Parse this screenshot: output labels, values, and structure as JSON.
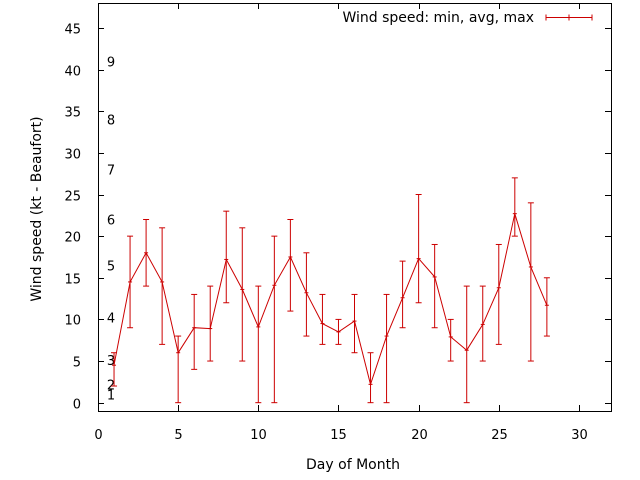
{
  "chart_data": {
    "type": "line",
    "subtype": "errorbar",
    "xlabel": "Day of Month",
    "ylabel": "Wind speed (kt - Beaufort)",
    "xlim": [
      0,
      32
    ],
    "ylim": [
      -1,
      48
    ],
    "xticks": [
      0,
      5,
      10,
      15,
      20,
      25,
      30
    ],
    "yticks": [
      0,
      5,
      10,
      15,
      20,
      25,
      30,
      35,
      40,
      45
    ],
    "beaufort_labels": [
      {
        "value": 1,
        "label": "1"
      },
      {
        "value": 2.2,
        "label": "2"
      },
      {
        "value": 5.1,
        "label": "3"
      },
      {
        "value": 10.2,
        "label": "4"
      },
      {
        "value": 16.5,
        "label": "5"
      },
      {
        "value": 22,
        "label": "6"
      },
      {
        "value": 28,
        "label": "7"
      },
      {
        "value": 34,
        "label": "8"
      },
      {
        "value": 41,
        "label": "9"
      }
    ],
    "legend": {
      "label": "Wind speed: min, avg, max",
      "placement": "top-right"
    },
    "grid": false,
    "color": "#cc0000",
    "series": [
      {
        "name": "Wind speed: min, avg, max",
        "x": [
          1,
          2,
          3,
          4,
          5,
          6,
          7,
          8,
          9,
          10,
          11,
          12,
          13,
          14,
          15,
          16,
          17,
          18,
          19,
          20,
          21,
          22,
          23,
          24,
          25,
          26,
          27,
          28
        ],
        "avg": [
          4.5,
          14.5,
          18,
          14.5,
          6,
          9,
          8.9,
          17.2,
          13.6,
          9.1,
          14.1,
          17.5,
          13.2,
          9.5,
          8.5,
          9.8,
          2.2,
          8,
          12.6,
          17.3,
          15.1,
          7.9,
          6.3,
          9.4,
          13.8,
          22.7,
          16.3,
          11.7
        ],
        "min": [
          2,
          9,
          14,
          7,
          0,
          4,
          5,
          12,
          5,
          0,
          0,
          11,
          8,
          7,
          7,
          6,
          0,
          0,
          9,
          12,
          9,
          5,
          0,
          5,
          7,
          20,
          5,
          8
        ],
        "max": [
          6,
          20,
          22,
          21,
          8,
          13,
          14,
          23,
          21,
          14,
          20,
          22,
          18,
          13,
          10,
          13,
          6,
          13,
          17,
          25,
          19,
          10,
          14,
          14,
          19,
          27,
          24,
          15
        ]
      }
    ]
  }
}
